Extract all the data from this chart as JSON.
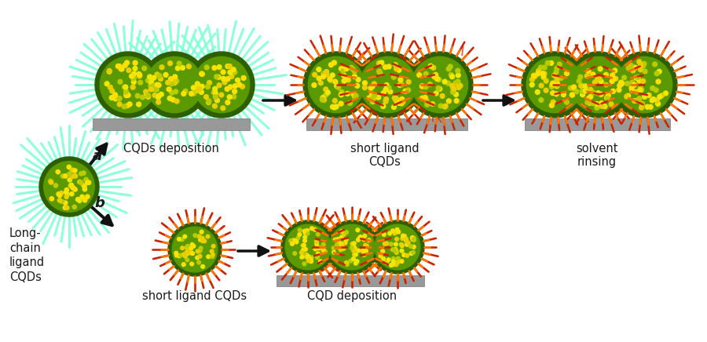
{
  "background_color": "#ffffff",
  "text_color": "#1a1a1a",
  "long_ligand_color": "#7fffd4",
  "short_ligand_color_inner": "#ff8800",
  "short_ligand_color_outer": "#cc2200",
  "substrate_color": "#999999",
  "arrow_color": "#111111",
  "label_a": "a",
  "label_b": "b",
  "label_long": "Long-\nchain\nligand\nCQDs",
  "label_cqds_dep": "CQDs deposition",
  "label_short_lig": "short ligand\nCQDs",
  "label_solvent": "solvent\nrinsing",
  "label_short_lig2": "short ligand CQDs",
  "label_cqd_dep2": "CQD deposition",
  "figsize": [
    9.0,
    4.36
  ],
  "dpi": 100
}
